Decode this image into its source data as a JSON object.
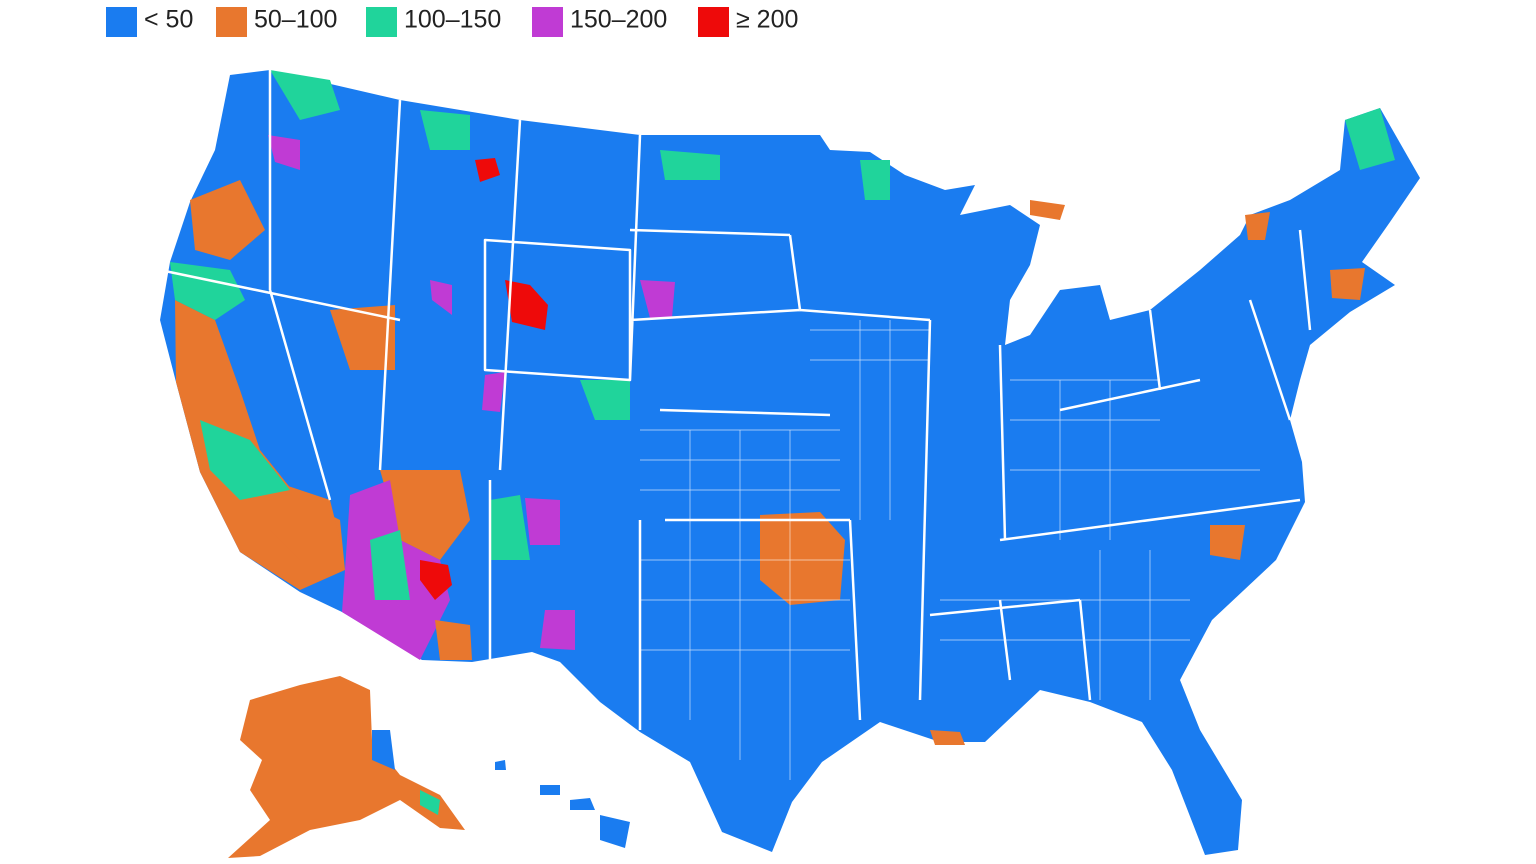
{
  "legend": {
    "items": [
      {
        "label": "< 50",
        "color": "#1a7cf0"
      },
      {
        "label": "50–100",
        "color": "#e8772e"
      },
      {
        "label": "100–150",
        "color": "#20d49b"
      },
      {
        "label": "150–200",
        "color": "#c03bd4"
      },
      {
        "label": "≥ 200",
        "color": "#ee0a0a"
      }
    ]
  }
}
